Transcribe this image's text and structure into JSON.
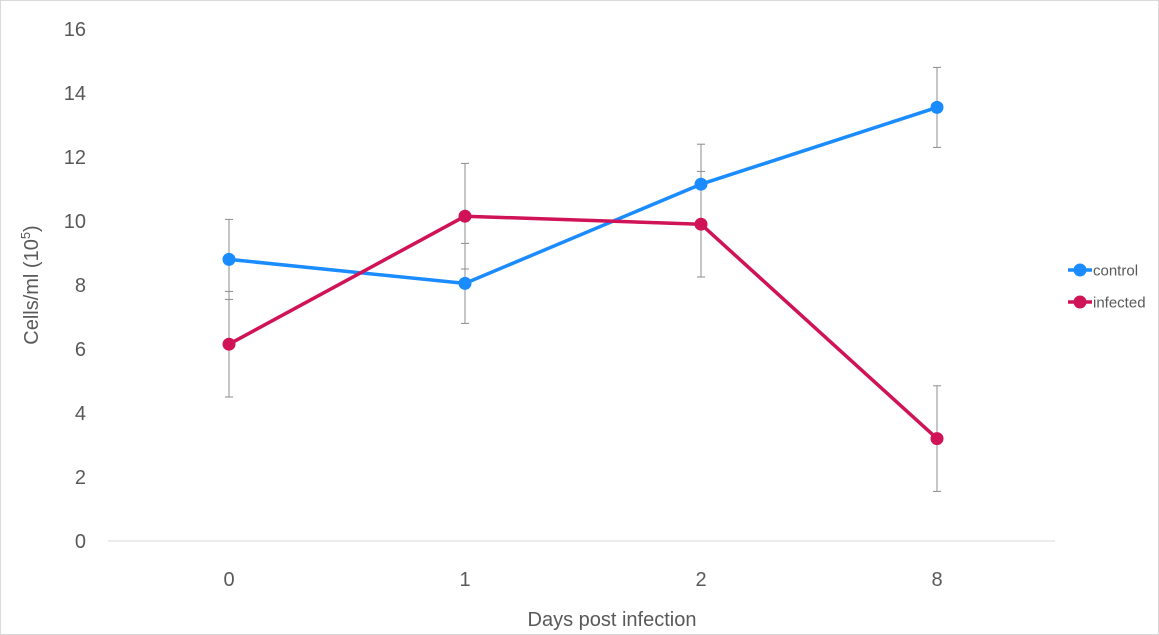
{
  "chart_data": {
    "type": "line",
    "categories": [
      "0",
      "1",
      "2",
      "8"
    ],
    "xlabel": "Days post infection",
    "ylabel": "Cells/ml (10",
    "ylabel_sup": "5",
    "ylabel_close": ")",
    "ylim": [
      0,
      16
    ],
    "yticks": [
      0,
      2,
      4,
      6,
      8,
      10,
      12,
      14,
      16
    ],
    "grid": false,
    "legend_position": "right",
    "series": [
      {
        "name": "control",
        "color": "#1a8cff",
        "values": [
          8.8,
          8.05,
          11.15,
          13.55
        ],
        "errors": [
          1.25,
          1.25,
          1.25,
          1.25
        ]
      },
      {
        "name": "infected",
        "color": "#d01256",
        "values": [
          6.15,
          10.15,
          9.9,
          3.2
        ],
        "errors": [
          1.65,
          1.65,
          1.65,
          1.65
        ]
      }
    ]
  }
}
